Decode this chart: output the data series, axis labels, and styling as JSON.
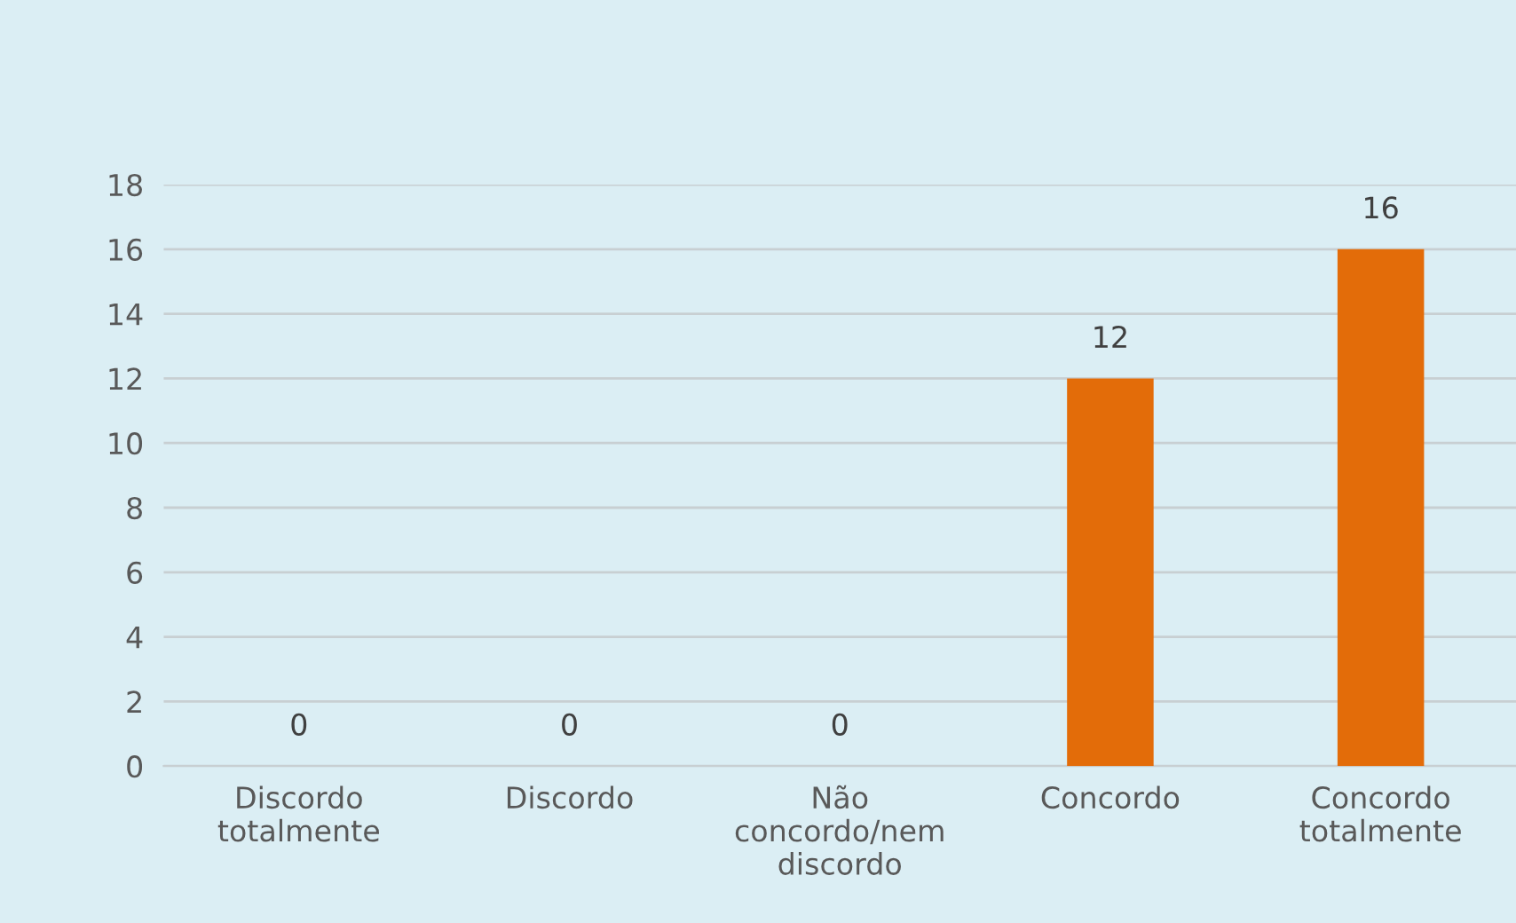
{
  "chart_data": {
    "type": "bar",
    "categories": [
      "Discordo\ntotalmente",
      "Discordo",
      "Não\nconcordo/nem\ndiscordo",
      "Concordo",
      "Concordo\ntotalmente"
    ],
    "values": [
      0,
      0,
      0,
      12,
      16
    ],
    "color": "#e36c09",
    "ylim": [
      0,
      18
    ],
    "yticks": [
      0,
      2,
      4,
      6,
      8,
      10,
      12,
      14,
      16,
      18
    ],
    "grid": "y",
    "data_labels": true
  }
}
